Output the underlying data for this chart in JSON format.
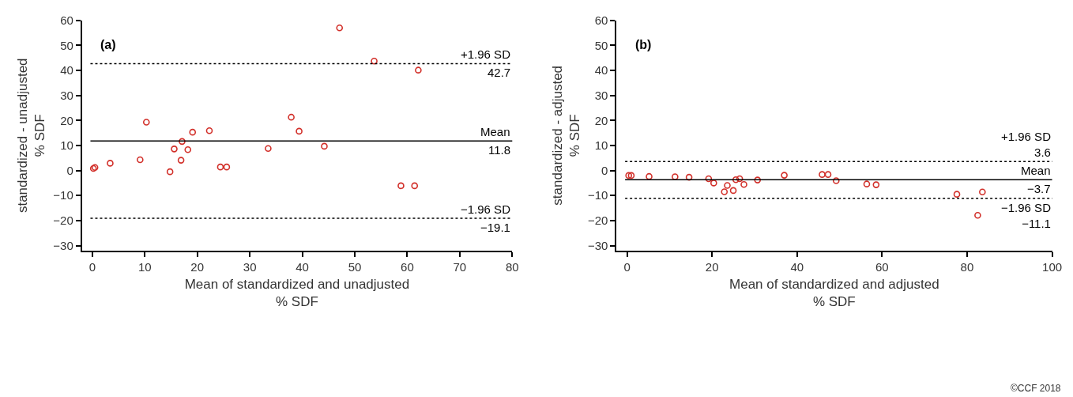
{
  "chart_data": [
    {
      "type": "scatter",
      "title": "(a)",
      "xlabel": "Mean of standardized and unadjusted\n% SDF",
      "ylabel": "standardized - unadjusted\n% SDF",
      "x": [
        0.2,
        0.5,
        3.4,
        9.1,
        10.3,
        14.8,
        15.6,
        16.9,
        17.1,
        18.2,
        19.1,
        22.3,
        24.4,
        25.6,
        33.5,
        37.9,
        39.4,
        44.2,
        47.1,
        53.7,
        58.8,
        61.4,
        62.1
      ],
      "series": [
        {
          "color": "#d2302a",
          "values": [
            0.8,
            1.2,
            2.9,
            4.3,
            19.3,
            -0.5,
            8.6,
            4.1,
            11.6,
            8.3,
            15.3,
            15.9,
            1.4,
            1.4,
            8.8,
            21.3,
            15.7,
            9.7,
            57.0,
            43.7,
            -6.1,
            -6.1,
            40.1
          ]
        }
      ],
      "marker": "circle",
      "xlim": [
        -2,
        80
      ],
      "xticks": [
        0,
        10,
        20,
        30,
        40,
        50,
        60,
        70,
        80
      ],
      "ylim": [
        -32,
        60
      ],
      "yticks": [
        -30,
        -20,
        -10,
        0,
        10,
        20,
        30,
        40,
        50,
        60
      ],
      "ref_lines": [
        {
          "axis": "y",
          "value": 42.7,
          "label": "+1.96 SD\n42.7",
          "line_style": "dotted",
          "color": "#000000"
        },
        {
          "axis": "y",
          "value": 11.8,
          "label": "Mean\n11.8",
          "line_style": "solid",
          "color": "#000000"
        },
        {
          "axis": "y",
          "value": -19.1,
          "label": "−1.96 SD\n−19.1",
          "line_style": "dotted",
          "color": "#000000"
        }
      ]
    },
    {
      "type": "scatter",
      "title": "(b)",
      "xlabel": "Mean of standardized and adjusted\n% SDF",
      "ylabel": "standardized - adjusted\n% SDF",
      "x": [
        0.4,
        1.0,
        5.2,
        11.3,
        14.6,
        19.2,
        20.4,
        22.9,
        23.6,
        25.0,
        25.6,
        26.5,
        27.5,
        30.7,
        37.0,
        45.9,
        47.3,
        49.2,
        56.4,
        58.6,
        77.6,
        82.5,
        83.6
      ],
      "series": [
        {
          "color": "#d2302a",
          "values": [
            -2.0,
            -2.0,
            -2.4,
            -2.5,
            -2.7,
            -3.3,
            -5.0,
            -8.5,
            -6.0,
            -8.0,
            -3.7,
            -3.3,
            -5.6,
            -3.8,
            -1.9,
            -1.6,
            -1.6,
            -4.1,
            -5.4,
            -5.7,
            -9.5,
            -17.9,
            -8.6
          ]
        }
      ],
      "marker": "circle",
      "xlim": [
        -2.5,
        100
      ],
      "xticks": [
        0,
        20,
        40,
        60,
        80,
        100
      ],
      "ylim": [
        -32,
        60
      ],
      "yticks": [
        -30,
        -20,
        -10,
        0,
        10,
        20,
        30,
        40,
        50,
        60
      ],
      "ref_lines": [
        {
          "axis": "y",
          "value": 3.6,
          "label": "+1.96 SD\n3.6",
          "line_style": "dotted",
          "color": "#000000"
        },
        {
          "axis": "y",
          "value": -3.7,
          "label": "Mean\n−3.7",
          "line_style": "solid",
          "color": "#000000"
        },
        {
          "axis": "y",
          "value": -11.1,
          "label": "−1.96 SD\n−11.1",
          "line_style": "dotted",
          "color": "#000000"
        }
      ],
      "annotations": [
        "©CCF 2018"
      ]
    }
  ]
}
